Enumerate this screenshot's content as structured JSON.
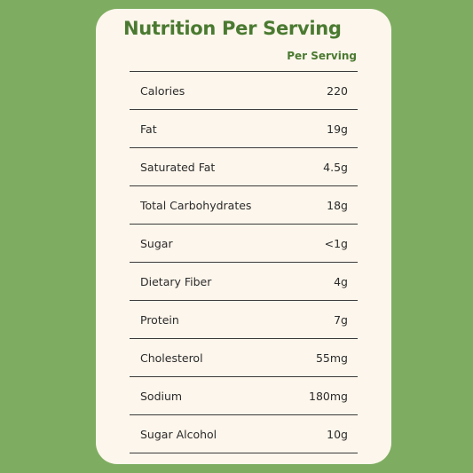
{
  "card": {
    "title": "Nutrition Per Serving",
    "column_header": "Per Serving"
  },
  "rows": [
    {
      "label": "Calories",
      "value": "220"
    },
    {
      "label": "Fat",
      "value": "19g"
    },
    {
      "label": "Saturated Fat",
      "value": "4.5g"
    },
    {
      "label": "Total Carbohydrates",
      "value": "18g"
    },
    {
      "label": "Sugar",
      "value": "<1g"
    },
    {
      "label": "Dietary Fiber",
      "value": "4g"
    },
    {
      "label": "Protein",
      "value": "7g"
    },
    {
      "label": "Cholesterol",
      "value": "55mg"
    },
    {
      "label": "Sodium",
      "value": "180mg"
    },
    {
      "label": "Sugar Alcohol",
      "value": "10g"
    }
  ],
  "colors": {
    "background": "#7ead61",
    "card": "#fdf6ec",
    "accent": "#4a7a31",
    "text": "#2b2b2b"
  }
}
